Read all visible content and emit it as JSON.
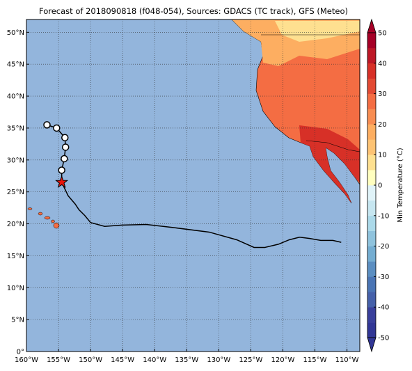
{
  "chart_data": {
    "type": "map",
    "title": "Forecast of 2018090818 (f048-054), Sources: GDACS (TC track), GFS (Meteo)",
    "xlim": [
      -160,
      -108
    ],
    "ylim": [
      0,
      52
    ],
    "xticks": [
      {
        "value": -160,
        "label": "160°W"
      },
      {
        "value": -155,
        "label": "155°W"
      },
      {
        "value": -150,
        "label": "150°W"
      },
      {
        "value": -145,
        "label": "145°W"
      },
      {
        "value": -140,
        "label": "140°W"
      },
      {
        "value": -135,
        "label": "135°W"
      },
      {
        "value": -130,
        "label": "130°W"
      },
      {
        "value": -125,
        "label": "125°W"
      },
      {
        "value": -120,
        "label": "120°W"
      },
      {
        "value": -115,
        "label": "115°W"
      },
      {
        "value": -110,
        "label": "110°W"
      }
    ],
    "yticks": [
      {
        "value": 0,
        "label": "0°"
      },
      {
        "value": 5,
        "label": "5°N"
      },
      {
        "value": 10,
        "label": "10°N"
      },
      {
        "value": 15,
        "label": "15°N"
      },
      {
        "value": 20,
        "label": "20°N"
      },
      {
        "value": 25,
        "label": "25°N"
      },
      {
        "value": 30,
        "label": "30°N"
      },
      {
        "value": 35,
        "label": "35°N"
      },
      {
        "value": 40,
        "label": "40°N"
      },
      {
        "value": 45,
        "label": "45°N"
      },
      {
        "value": 50,
        "label": "50°N"
      }
    ],
    "grid": true,
    "ocean_color": "#93b5dc",
    "track": {
      "lon": [
        -156.8,
        -155.3,
        -154.0,
        -153.9,
        -154.1,
        -154.5,
        -154.5
      ],
      "lat": [
        35.5,
        35.0,
        33.5,
        32.0,
        30.2,
        28.4,
        26.5
      ]
    },
    "forecast_track": {
      "lon": [
        -154.5,
        -153.5,
        -152.4,
        -151.8,
        -150.9,
        -150.0,
        -147.8,
        -145.1,
        -141.3,
        -137.0,
        -131.5,
        -127.2,
        -124.5,
        -122.8,
        -120.7,
        -119.0,
        -117.4,
        -115.8,
        -114.1,
        -112.2,
        -110.9
      ],
      "lat": [
        26.5,
        24.4,
        23.1,
        22.2,
        21.3,
        20.2,
        19.6,
        19.8,
        19.9,
        19.4,
        18.7,
        17.5,
        16.3,
        16.3,
        16.8,
        17.5,
        17.9,
        17.7,
        17.4,
        17.4,
        17.1
      ]
    },
    "colorbar": {
      "label": "Min Temperature (°C)",
      "lim": [
        -50,
        50
      ],
      "ticks": [
        -50,
        -40,
        -30,
        -20,
        -10,
        0,
        10,
        20,
        30,
        40,
        50
      ],
      "colors": [
        "#313695",
        "#393f9b",
        "#4560a9",
        "#4a74b4",
        "#5b8ec1",
        "#74add1",
        "#8fc3dd",
        "#abd9e9",
        "#c6e6f0",
        "#e0f3f8",
        "#ffffbf",
        "#fee090",
        "#fdc374",
        "#fdae61",
        "#f88d52",
        "#f46d43",
        "#e34a33",
        "#d73027",
        "#bd1726",
        "#a50026"
      ]
    }
  }
}
